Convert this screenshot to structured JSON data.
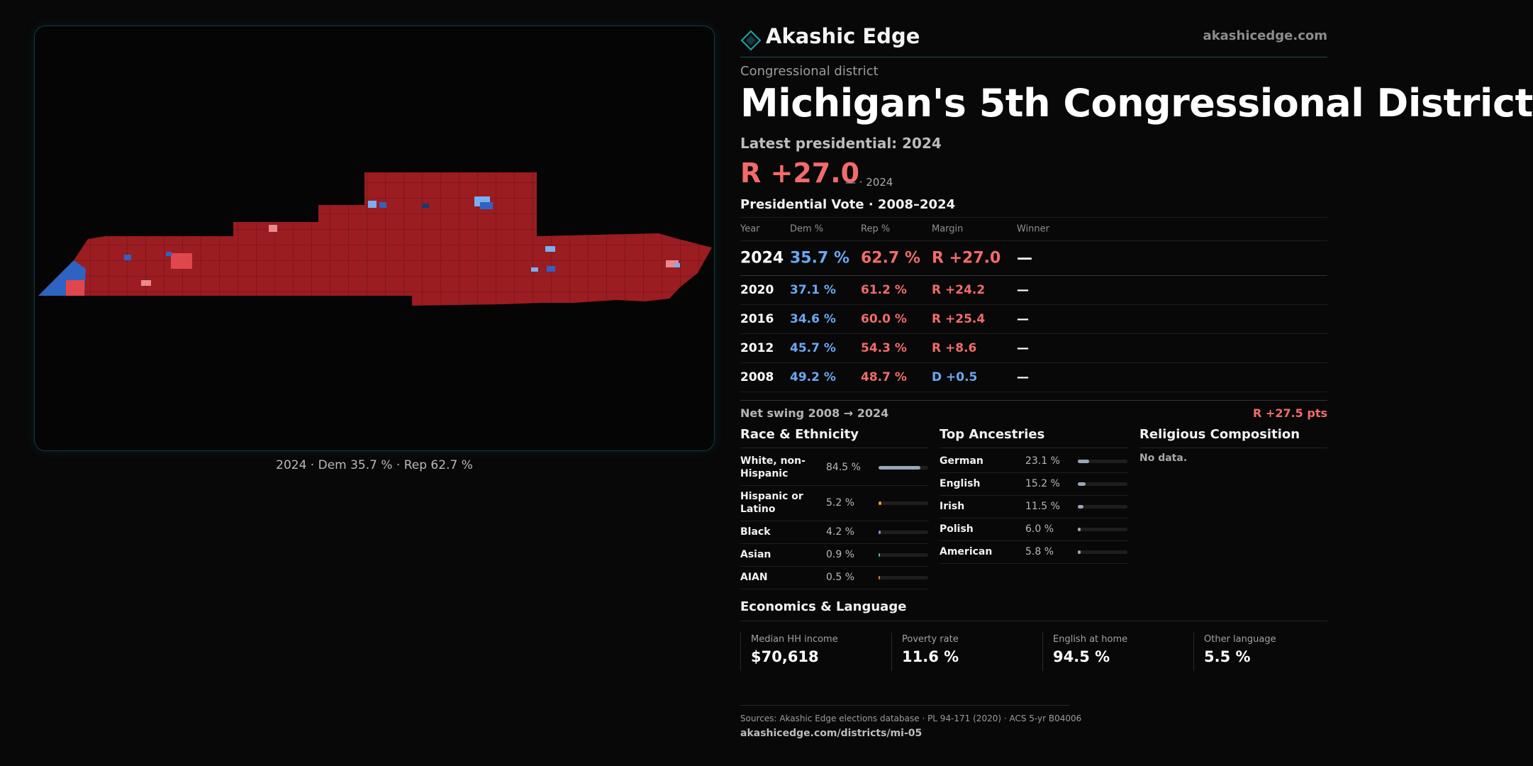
{
  "brand": {
    "name": "Akashic Edge",
    "url": "akashicedge.com"
  },
  "map": {
    "caption": "2024 · Dem 35.7 % · Rep 62.7 %",
    "colors": {
      "rep": "#9b1c21",
      "rep_strong": "#7e1217",
      "dem": "#2f63c2",
      "dem_light": "#7aaef0",
      "lean_rep": "#e0474c"
    }
  },
  "district": {
    "kind": "Congressional district",
    "title": "Michigan's 5th Congressional District",
    "latest_label": "Latest presidential: 2024",
    "latest_margin": "R +27.0",
    "latest_sub": "— · 2024"
  },
  "presidential": {
    "title": "Presidential Vote · 2008–2024",
    "headers": {
      "year": "Year",
      "dem": "Dem %",
      "rep": "Rep %",
      "margin": "Margin",
      "winner": "Winner"
    },
    "rows": [
      {
        "year": "2024",
        "dem": "35.7 %",
        "rep": "62.7 %",
        "margin": "R +27.0",
        "winner": "—"
      },
      {
        "year": "2020",
        "dem": "37.1 %",
        "rep": "61.2 %",
        "margin": "R +24.2",
        "winner": "—"
      },
      {
        "year": "2016",
        "dem": "34.6 %",
        "rep": "60.0 %",
        "margin": "R +25.4",
        "winner": "—"
      },
      {
        "year": "2012",
        "dem": "45.7 %",
        "rep": "54.3 %",
        "margin": "R +8.6",
        "winner": "—"
      },
      {
        "year": "2008",
        "dem": "49.2 %",
        "rep": "48.7 %",
        "margin": "D +0.5",
        "winner": "—"
      }
    ],
    "swing_label": "Net swing 2008 → 2024",
    "swing_value": "R +27.5 pts"
  },
  "race": {
    "title": "Race & Ethnicity",
    "rows": [
      {
        "name": "White, non-Hispanic",
        "pct": "84.5 %",
        "value": 84.5,
        "color": "#9aa6b8"
      },
      {
        "name": "Hispanic or Latino",
        "pct": "5.2 %",
        "value": 5.2,
        "color": "#e39b2a"
      },
      {
        "name": "Black",
        "pct": "4.2 %",
        "value": 4.2,
        "color": "#8f7fe0"
      },
      {
        "name": "Asian",
        "pct": "0.9 %",
        "value": 0.9,
        "color": "#4fb39b"
      },
      {
        "name": "AIAN",
        "pct": "0.5 %",
        "value": 0.5,
        "color": "#d07a4a"
      }
    ]
  },
  "ancestry": {
    "title": "Top Ancestries",
    "rows": [
      {
        "name": "German",
        "pct": "23.1 %",
        "value": 23.1,
        "color": "#9aa6b8"
      },
      {
        "name": "English",
        "pct": "15.2 %",
        "value": 15.2,
        "color": "#9aa6b8"
      },
      {
        "name": "Irish",
        "pct": "11.5 %",
        "value": 11.5,
        "color": "#9aa6b8"
      },
      {
        "name": "Polish",
        "pct": "6.0 %",
        "value": 6.0,
        "color": "#9aa6b8"
      },
      {
        "name": "American",
        "pct": "5.8 %",
        "value": 5.8,
        "color": "#9aa6b8"
      }
    ]
  },
  "religion": {
    "title": "Religious Composition",
    "no_data": "No data."
  },
  "economics": {
    "title": "Economics & Language",
    "stats": [
      {
        "label": "Median HH income",
        "value": "$70,618"
      },
      {
        "label": "Poverty rate",
        "value": "11.6 %"
      },
      {
        "label": "English at home",
        "value": "94.5 %"
      },
      {
        "label": "Other language",
        "value": "5.5 %"
      }
    ]
  },
  "footer": {
    "sources": "Sources: Akashic Edge elections database · PL 94-171 (2020) · ACS 5-yr B04006",
    "url": "akashicedge.com/districts/mi-05"
  }
}
